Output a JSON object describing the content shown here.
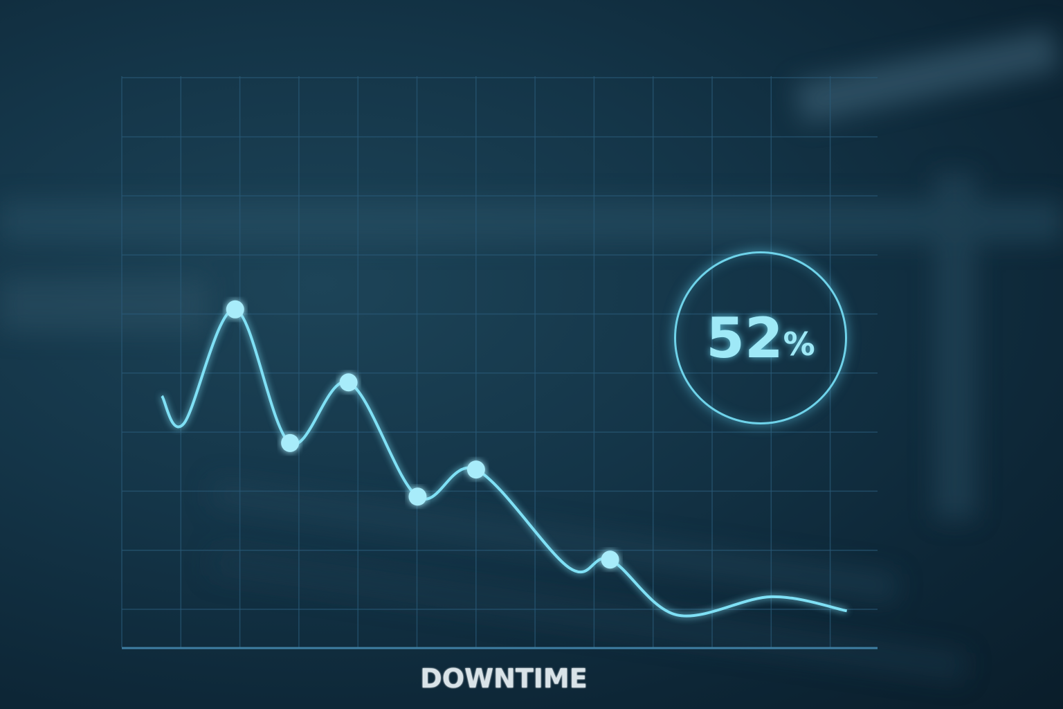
{
  "chart_data": {
    "type": "line",
    "title": "",
    "xlabel": "DOWNTIME",
    "ylabel": "",
    "xlim": [
      0,
      12.8
    ],
    "ylim": [
      0,
      9.7
    ],
    "grid": true,
    "curve": [
      [
        0.68,
        4.27
      ],
      [
        1.05,
        3.8
      ],
      [
        1.92,
        5.74
      ],
      [
        2.85,
        3.47
      ],
      [
        3.84,
        4.5
      ],
      [
        5.01,
        2.56
      ],
      [
        6.0,
        3.02
      ],
      [
        7.58,
        1.35
      ],
      [
        8.27,
        1.49
      ],
      [
        9.4,
        0.55
      ],
      [
        11.0,
        0.86
      ],
      [
        12.28,
        0.62
      ]
    ],
    "markers": [
      [
        1.92,
        5.74
      ],
      [
        2.85,
        3.47
      ],
      [
        3.84,
        4.5
      ],
      [
        5.01,
        2.56
      ],
      [
        6.0,
        3.02
      ],
      [
        8.27,
        1.49
      ]
    ],
    "line_color": "#7fe0f5",
    "grid_color": "#2a5a78"
  },
  "badge": {
    "value": "52",
    "unit": "%"
  }
}
